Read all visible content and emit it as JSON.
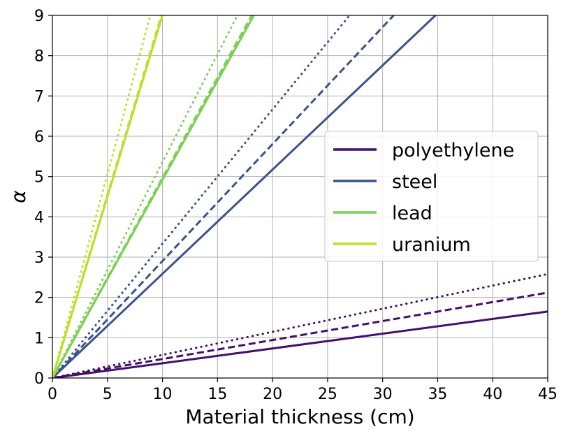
{
  "chart_data": {
    "type": "line",
    "title": "",
    "xlabel": "Material thickness (cm)",
    "ylabel": "α",
    "xlim": [
      0,
      45
    ],
    "ylim": [
      0,
      9
    ],
    "xticks": [
      "0",
      "5",
      "10",
      "15",
      "20",
      "25",
      "30",
      "35",
      "40",
      "45"
    ],
    "yticks": [
      "0",
      "1",
      "2",
      "3",
      "4",
      "5",
      "6",
      "7",
      "8",
      "9"
    ],
    "grid": true,
    "legend_position": "center-right",
    "series": [
      {
        "name": "polyethylene",
        "color": "#440f6a",
        "lines": [
          {
            "style": "solid",
            "x": [
              0,
              45
            ],
            "y": [
              0,
              1.65
            ]
          },
          {
            "style": "dashed",
            "x": [
              0,
              45
            ],
            "y": [
              0,
              2.12
            ]
          },
          {
            "style": "dotted",
            "x": [
              0,
              45
            ],
            "y": [
              0,
              2.58
            ]
          }
        ]
      },
      {
        "name": "steel",
        "color": "#3b528b",
        "lines": [
          {
            "style": "solid",
            "x": [
              0,
              34.8
            ],
            "y": [
              0,
              9
            ]
          },
          {
            "style": "dashed",
            "x": [
              0,
              31.0
            ],
            "y": [
              0,
              9
            ]
          },
          {
            "style": "dotted",
            "x": [
              0,
              27.0
            ],
            "y": [
              0,
              9
            ]
          }
        ]
      },
      {
        "name": "lead",
        "color": "#7ad151",
        "lines": [
          {
            "style": "solid",
            "x": [
              0,
              18.3
            ],
            "y": [
              0,
              9
            ]
          },
          {
            "style": "dashed",
            "x": [
              0,
              18.1
            ],
            "y": [
              0,
              9
            ]
          },
          {
            "style": "dotted",
            "x": [
              0,
              16.8
            ],
            "y": [
              0,
              9
            ]
          }
        ]
      },
      {
        "name": "uranium",
        "color": "#bddf26",
        "lines": [
          {
            "style": "solid",
            "x": [
              0,
              10.0
            ],
            "y": [
              0,
              9
            ]
          },
          {
            "style": "dashed",
            "x": [
              0,
              9.9
            ],
            "y": [
              0,
              9
            ]
          },
          {
            "style": "dotted",
            "x": [
              0,
              8.9
            ],
            "y": [
              0,
              9
            ]
          }
        ]
      }
    ]
  }
}
